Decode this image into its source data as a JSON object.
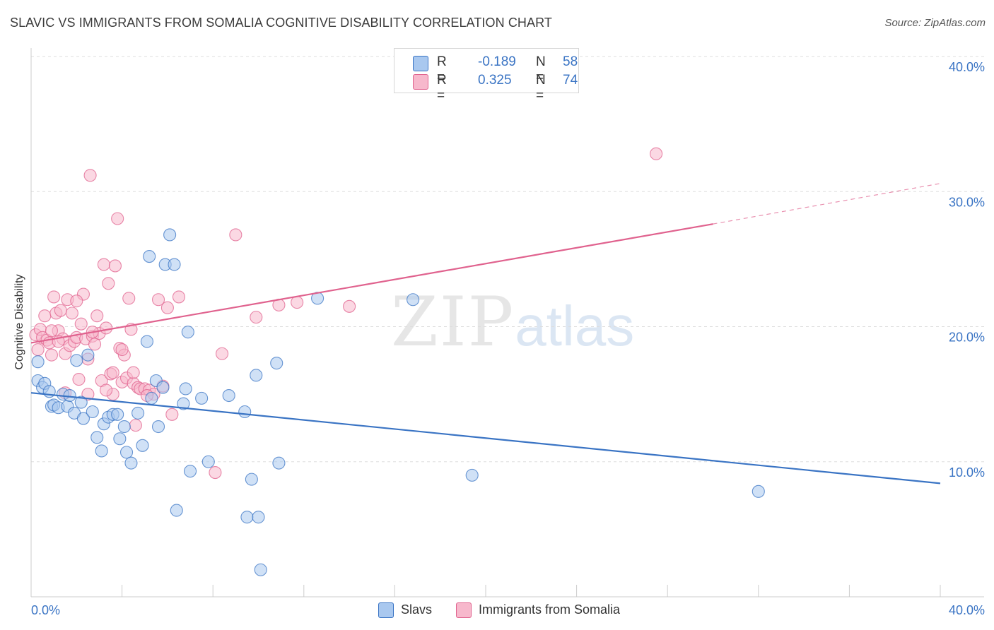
{
  "title": "SLAVIC VS IMMIGRANTS FROM SOMALIA COGNITIVE DISABILITY CORRELATION CHART",
  "source": "Source: ZipAtlas.com",
  "watermark": {
    "zip": "ZIP",
    "atlas": "atlas"
  },
  "colors": {
    "slavs": "#3a74c4",
    "slavs_fill": "#a9c8ef",
    "somalia": "#e0628e",
    "somalia_fill": "#f7b8cc",
    "grid": "#dddddd",
    "axis_text": "#3a74c4"
  },
  "legend_top": [
    {
      "r_label": "R =",
      "r_value": "-0.189",
      "n_label": "N =",
      "n_value": "58"
    },
    {
      "r_label": "R =",
      "r_value": "0.325",
      "n_label": "N =",
      "n_value": "74"
    }
  ],
  "legend_bottom": [
    {
      "label": "Slavs"
    },
    {
      "label": "Immigrants from Somalia"
    }
  ],
  "chart_data": {
    "type": "scatter",
    "title": "SLAVIC VS IMMIGRANTS FROM SOMALIA COGNITIVE DISABILITY CORRELATION CHART",
    "xlabel": "",
    "ylabel": "Cognitive Disability",
    "xlim": [
      0,
      40
    ],
    "ylim": [
      0,
      40
    ],
    "x_tick_labels": [
      "0.0%",
      "40.0%"
    ],
    "y_tick_labels": [
      "10.0%",
      "20.0%",
      "30.0%",
      "40.0%"
    ],
    "y_ticks": [
      10,
      20,
      30,
      40
    ],
    "grid": true,
    "legend_position": "top-center",
    "series": [
      {
        "name": "Slavs",
        "points": [
          [
            0.3,
            17.4
          ],
          [
            0.3,
            16.0
          ],
          [
            0.5,
            15.5
          ],
          [
            0.6,
            15.8
          ],
          [
            0.8,
            15.2
          ],
          [
            0.9,
            14.1
          ],
          [
            1.0,
            14.2
          ],
          [
            1.2,
            14.0
          ],
          [
            1.4,
            15.0
          ],
          [
            1.6,
            14.1
          ],
          [
            1.7,
            14.9
          ],
          [
            1.9,
            13.6
          ],
          [
            2.0,
            17.5
          ],
          [
            2.2,
            14.4
          ],
          [
            2.3,
            13.2
          ],
          [
            2.5,
            17.9
          ],
          [
            2.7,
            13.7
          ],
          [
            2.9,
            11.8
          ],
          [
            3.1,
            10.8
          ],
          [
            3.2,
            12.8
          ],
          [
            3.4,
            13.3
          ],
          [
            3.6,
            13.5
          ],
          [
            3.8,
            13.5
          ],
          [
            3.9,
            11.7
          ],
          [
            4.1,
            12.6
          ],
          [
            4.2,
            10.7
          ],
          [
            4.4,
            9.9
          ],
          [
            4.7,
            13.6
          ],
          [
            4.9,
            11.2
          ],
          [
            5.1,
            18.9
          ],
          [
            5.2,
            25.2
          ],
          [
            5.3,
            14.7
          ],
          [
            5.5,
            16.0
          ],
          [
            5.6,
            12.6
          ],
          [
            5.8,
            15.5
          ],
          [
            5.9,
            24.6
          ],
          [
            6.1,
            26.8
          ],
          [
            6.3,
            24.6
          ],
          [
            6.4,
            6.4
          ],
          [
            6.7,
            14.3
          ],
          [
            6.8,
            15.4
          ],
          [
            6.9,
            19.6
          ],
          [
            7.0,
            9.3
          ],
          [
            7.5,
            14.7
          ],
          [
            7.8,
            10.0
          ],
          [
            8.7,
            14.9
          ],
          [
            9.4,
            13.7
          ],
          [
            9.5,
            5.9
          ],
          [
            9.7,
            8.7
          ],
          [
            9.9,
            16.4
          ],
          [
            10.0,
            5.9
          ],
          [
            10.1,
            2.0
          ],
          [
            10.8,
            17.3
          ],
          [
            10.9,
            9.9
          ],
          [
            12.6,
            22.1
          ],
          [
            16.8,
            22.0
          ],
          [
            19.4,
            9.0
          ],
          [
            32.0,
            7.8
          ]
        ]
      },
      {
        "name": "Immigrants from Somalia",
        "points": [
          [
            0.2,
            19.4
          ],
          [
            0.3,
            18.3
          ],
          [
            0.4,
            19.8
          ],
          [
            0.5,
            19.2
          ],
          [
            0.6,
            20.8
          ],
          [
            0.7,
            19.0
          ],
          [
            0.8,
            18.8
          ],
          [
            0.9,
            17.9
          ],
          [
            1.0,
            22.2
          ],
          [
            1.1,
            21.0
          ],
          [
            1.2,
            19.7
          ],
          [
            1.3,
            21.2
          ],
          [
            1.4,
            19.1
          ],
          [
            1.5,
            18.0
          ],
          [
            1.6,
            22.0
          ],
          [
            1.7,
            18.6
          ],
          [
            1.8,
            21.0
          ],
          [
            1.9,
            18.9
          ],
          [
            2.0,
            19.2
          ],
          [
            2.1,
            16.1
          ],
          [
            2.2,
            20.2
          ],
          [
            2.3,
            22.4
          ],
          [
            2.4,
            19.1
          ],
          [
            2.5,
            17.6
          ],
          [
            2.6,
            31.2
          ],
          [
            2.7,
            19.3
          ],
          [
            2.8,
            18.7
          ],
          [
            2.9,
            20.8
          ],
          [
            3.0,
            19.5
          ],
          [
            3.1,
            16.0
          ],
          [
            3.2,
            24.6
          ],
          [
            3.3,
            19.9
          ],
          [
            3.4,
            23.2
          ],
          [
            3.5,
            16.5
          ],
          [
            3.6,
            15.0
          ],
          [
            3.7,
            24.5
          ],
          [
            3.8,
            28.0
          ],
          [
            3.9,
            18.4
          ],
          [
            4.0,
            15.9
          ],
          [
            4.1,
            17.9
          ],
          [
            4.2,
            16.2
          ],
          [
            4.3,
            22.1
          ],
          [
            4.4,
            19.8
          ],
          [
            4.5,
            15.8
          ],
          [
            4.6,
            12.7
          ],
          [
            4.7,
            15.5
          ],
          [
            4.8,
            15.4
          ],
          [
            5.0,
            15.4
          ],
          [
            5.2,
            15.3
          ],
          [
            5.4,
            15.0
          ],
          [
            5.6,
            22.0
          ],
          [
            5.8,
            15.6
          ],
          [
            6.0,
            21.4
          ],
          [
            6.2,
            13.5
          ],
          [
            6.5,
            22.2
          ],
          [
            8.1,
            9.2
          ],
          [
            8.4,
            18.0
          ],
          [
            9.0,
            26.8
          ],
          [
            9.9,
            20.7
          ],
          [
            10.9,
            21.6
          ],
          [
            11.7,
            21.8
          ],
          [
            14.0,
            21.5
          ],
          [
            27.5,
            32.8
          ],
          [
            0.9,
            19.7
          ],
          [
            1.2,
            18.9
          ],
          [
            1.5,
            15.1
          ],
          [
            2.0,
            21.9
          ],
          [
            2.7,
            19.6
          ],
          [
            3.3,
            15.3
          ],
          [
            3.6,
            16.6
          ],
          [
            4.0,
            18.3
          ],
          [
            4.5,
            16.6
          ],
          [
            5.1,
            14.9
          ],
          [
            2.5,
            15.0
          ]
        ]
      }
    ],
    "trend_lines": [
      {
        "series": "Slavs",
        "x": [
          0,
          40
        ],
        "y": [
          15.1,
          8.4
        ],
        "style": "solid"
      },
      {
        "series": "Immigrants from Somalia",
        "x": [
          0,
          30
        ],
        "y": [
          18.8,
          27.6
        ],
        "style": "solid",
        "extension": {
          "x": [
            30,
            40
          ],
          "y": [
            27.6,
            30.6
          ],
          "style": "dashed"
        }
      }
    ]
  }
}
